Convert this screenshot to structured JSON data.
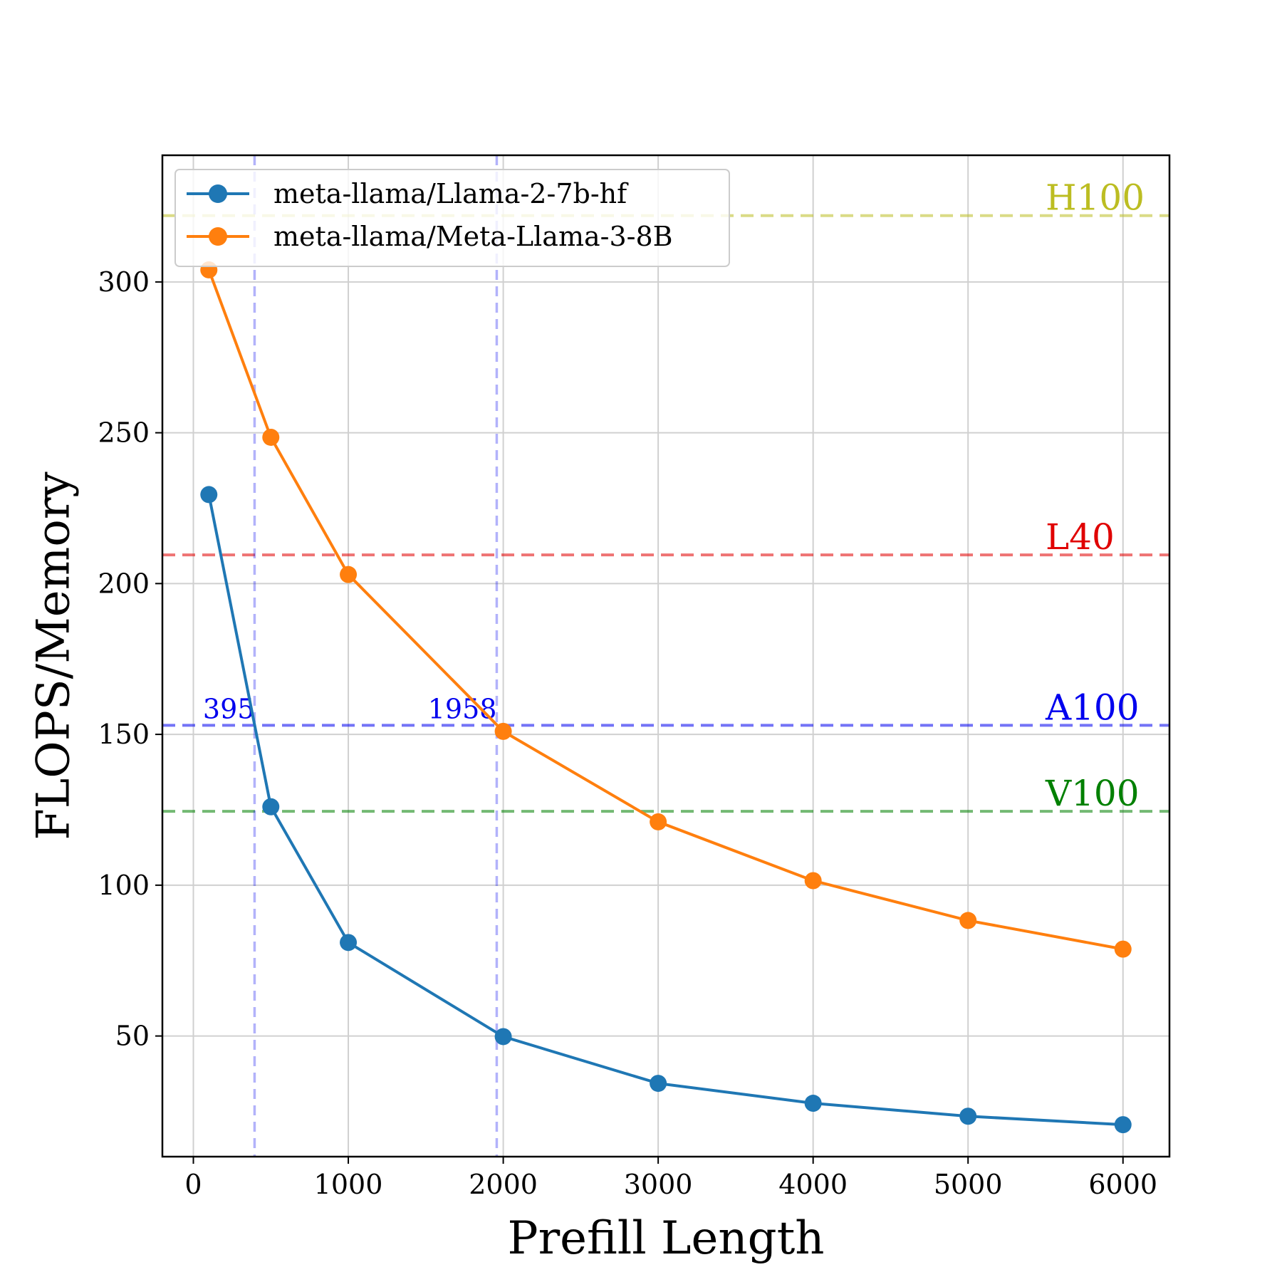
{
  "chart_data": {
    "type": "line",
    "title": "",
    "xlabel": "Prefill Length",
    "ylabel": "FLOPS/Memory",
    "xlim": [
      -200,
      6300
    ],
    "ylim": [
      10,
      342
    ],
    "xticks": [
      0,
      1000,
      2000,
      3000,
      4000,
      5000,
      6000
    ],
    "yticks": [
      50,
      100,
      150,
      200,
      250,
      300
    ],
    "grid": true,
    "legend_position": "top-left",
    "series": [
      {
        "name": "meta-llama/Llama-2-7b-hf",
        "color": "#1f77b4",
        "x": [
          100,
          500,
          1000,
          2000,
          3000,
          4000,
          5000,
          6000
        ],
        "y": [
          229.5,
          126,
          81,
          49.8,
          34.3,
          27.7,
          23.4,
          20.6
        ]
      },
      {
        "name": "meta-llama/Meta-Llama-3-8B",
        "color": "#ff7f0e",
        "x": [
          100,
          500,
          1000,
          2000,
          3000,
          4000,
          5000,
          6000
        ],
        "y": [
          304,
          248.5,
          203,
          151,
          121,
          101.5,
          88.3,
          78.8
        ]
      }
    ],
    "reference_lines": [
      {
        "label": "H100",
        "y": 322,
        "color": "#bcbd22"
      },
      {
        "label": "L40",
        "y": 209.5,
        "color": "#e00000"
      },
      {
        "label": "A100",
        "y": 153,
        "color": "#0000ee"
      },
      {
        "label": "V100",
        "y": 124.5,
        "color": "#008000"
      }
    ],
    "crossover_lines": [
      {
        "label": "395",
        "x": 395
      },
      {
        "label": "1958",
        "x": 1958
      }
    ]
  }
}
